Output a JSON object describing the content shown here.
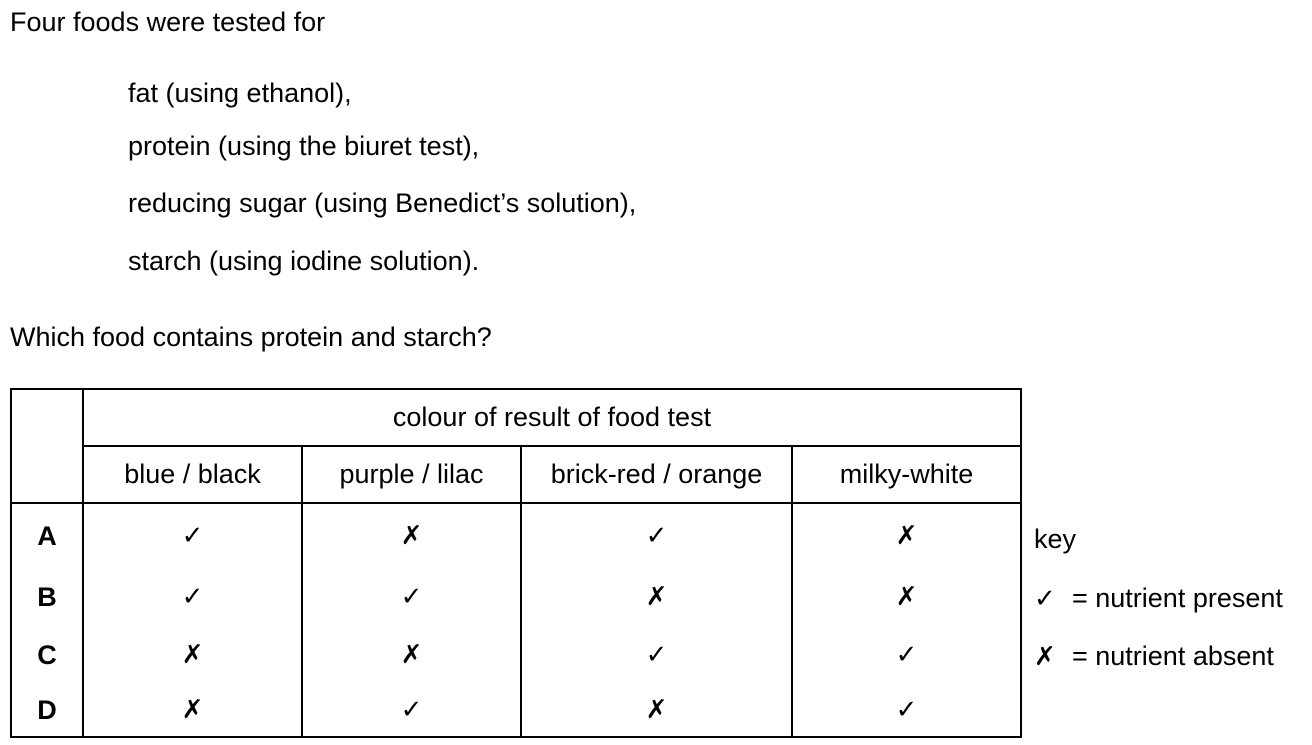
{
  "intro": "Four foods were tested for",
  "tests": [
    "fat (using ethanol),",
    "protein (using the biuret test),",
    "reducing sugar (using Benedict’s solution),",
    "starch (using iodine solution)."
  ],
  "question": "Which food contains protein and starch?",
  "table": {
    "group_header": "colour of result of food test",
    "columns": [
      "blue / black",
      "purple / lilac",
      "brick-red / orange",
      "milky-white"
    ],
    "rows": [
      {
        "label": "A",
        "marks": [
          "✓",
          "✗",
          "✓",
          "✗"
        ]
      },
      {
        "label": "B",
        "marks": [
          "✓",
          "✓",
          "✗",
          "✗"
        ]
      },
      {
        "label": "C",
        "marks": [
          "✗",
          "✗",
          "✓",
          "✓"
        ]
      },
      {
        "label": "D",
        "marks": [
          "✗",
          "✓",
          "✗",
          "✓"
        ]
      }
    ]
  },
  "key": {
    "title": "key",
    "present_symbol": "✓",
    "present_text": "= nutrient present",
    "absent_symbol": "✗",
    "absent_text": "= nutrient absent"
  }
}
